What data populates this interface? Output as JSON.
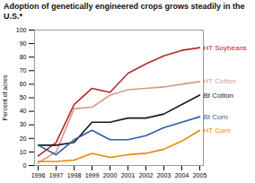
{
  "chart_data": {
    "type": "line",
    "title": "Adoption of genetically engineered crops grows steadily in the U.S.*",
    "ylabel": "Percent of acres",
    "x": [
      1996,
      1997,
      1998,
      1999,
      2000,
      2001,
      2002,
      2003,
      2004,
      2005
    ],
    "series": [
      {
        "name": "HT Soybeans",
        "color": "#b5292a",
        "values": [
          7,
          17,
          45,
          57,
          54,
          68,
          75,
          81,
          85,
          87
        ]
      },
      {
        "name": "HT Cotton",
        "color": "#d8998a",
        "values": [
          2,
          10,
          42,
          43,
          52,
          56,
          57,
          58,
          60,
          62
        ]
      },
      {
        "name": "Bt Cotton",
        "color": "#1a1a1a",
        "values": [
          15,
          15,
          17,
          32,
          32,
          35,
          35,
          38,
          45,
          52
        ]
      },
      {
        "name": "Bt Corn",
        "color": "#2b5fa5",
        "values": [
          15,
          8,
          19,
          26,
          19,
          19,
          22,
          28,
          32,
          36
        ]
      },
      {
        "name": "HT Corn",
        "color": "#e68a00",
        "values": [
          3,
          3,
          4,
          9,
          6,
          8,
          9,
          12,
          18,
          26
        ]
      }
    ],
    "xlim": [
      1995.8,
      2005.2
    ],
    "xticks": [
      1996,
      1997,
      1998,
      1999,
      2000,
      2001,
      2002,
      2003,
      2004,
      2005
    ],
    "ylim": [
      0,
      100
    ],
    "yticks": [
      0,
      10,
      20,
      30,
      40,
      50,
      60,
      70,
      80,
      90,
      100
    ],
    "grid": false
  }
}
